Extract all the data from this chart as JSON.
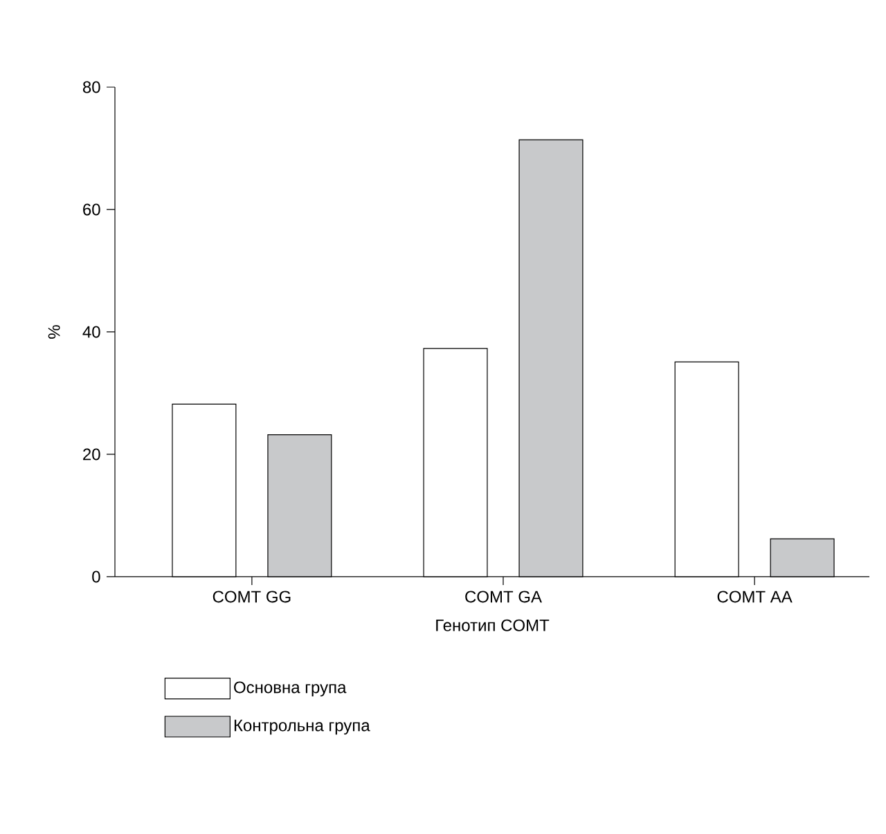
{
  "chart_data": {
    "type": "bar",
    "xlabel": "Генотип COMT",
    "ylabel": "%",
    "categories": [
      "COMT GG",
      "COMT GA",
      "COMT  AA"
    ],
    "series": [
      {
        "name": "Основна група",
        "color": "#ffffff",
        "values": [
          28.2,
          37.3,
          35.1
        ]
      },
      {
        "name": "Контрольна група",
        "color": "#c8c9cb",
        "values": [
          23.2,
          71.4,
          6.2
        ]
      }
    ],
    "ylim": [
      0,
      80
    ],
    "yticks": [
      0,
      20,
      40,
      60,
      80
    ],
    "legend": "bottom left"
  }
}
